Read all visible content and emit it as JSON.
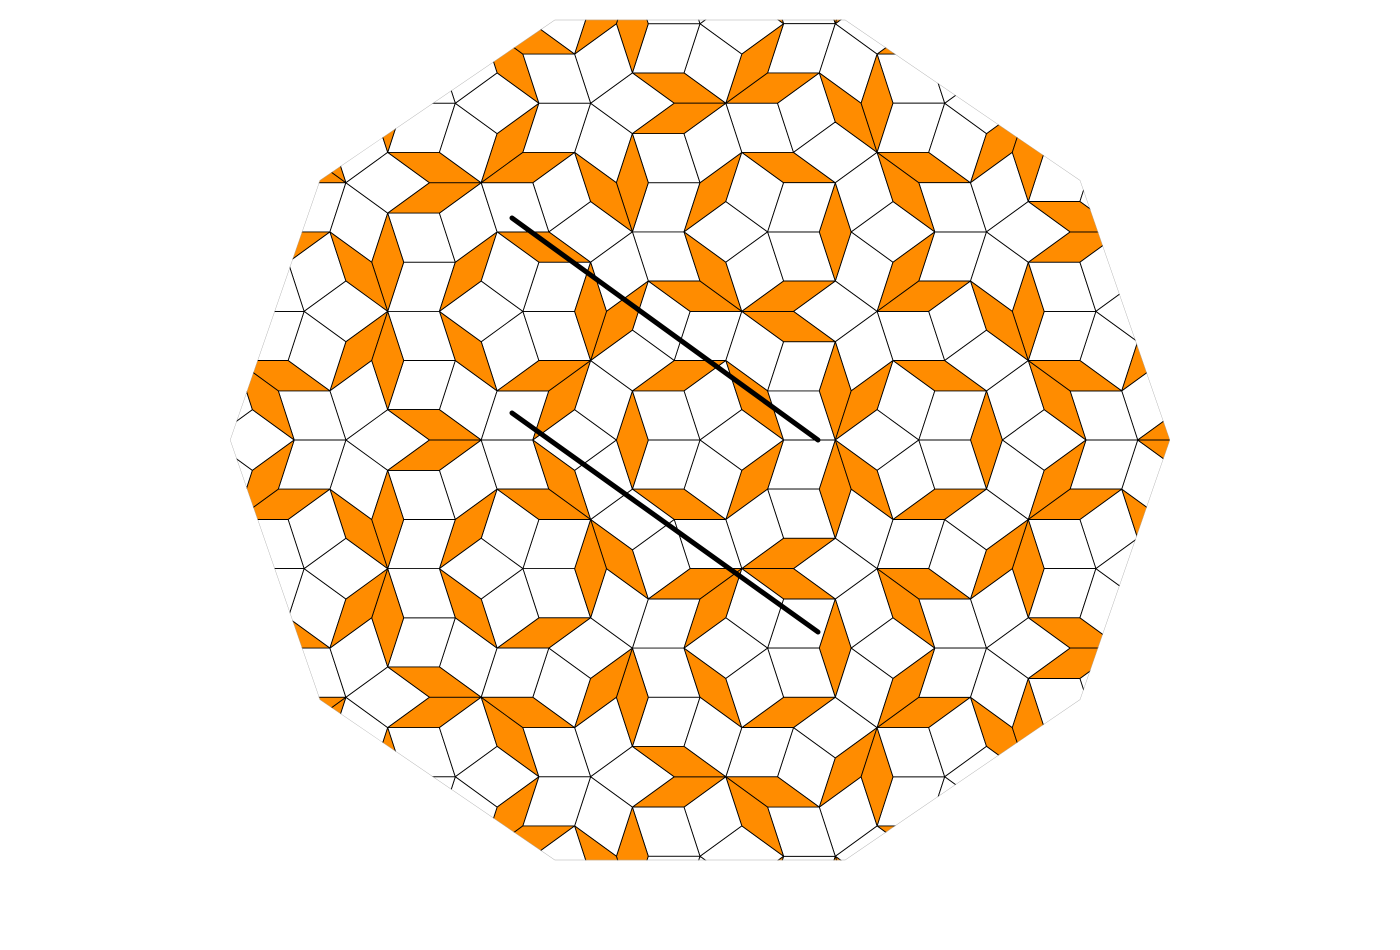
{
  "diagram": {
    "kind": "penrose-rhomb-tiling",
    "tile_types": [
      "thin-rhomb",
      "thick-rhomb"
    ],
    "thin_rhomb_angle_deg": 36,
    "thick_rhomb_angle_deg": 72,
    "highlighted_tile": "thin-rhomb",
    "highlight_lines": 2,
    "colors": {
      "background": "#ffffff",
      "thin_rhomb_fill": "#ff8c00",
      "thick_rhomb_fill": "#ffffff",
      "tile_edge": "#000000",
      "boundary_edge": "#aaaaaa",
      "highlight_line": "#000000"
    }
  }
}
